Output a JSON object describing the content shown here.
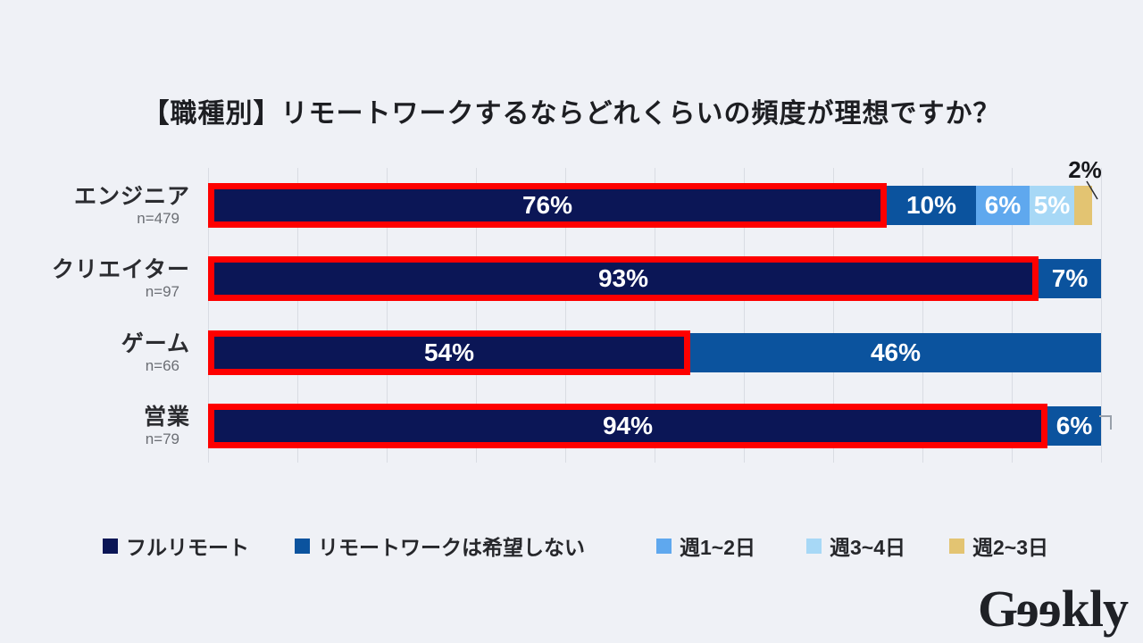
{
  "chart_data": {
    "type": "bar",
    "stacked": true,
    "orientation": "horizontal",
    "title": "【職種別】リモートワークするならどれくらいの頻度が理想ですか？",
    "categories": [
      {
        "label": "エンジニア",
        "n": "n=479"
      },
      {
        "label": "クリエイター",
        "n": "n=97"
      },
      {
        "label": "ゲーム",
        "n": "n=66"
      },
      {
        "label": "営業",
        "n": "n=79"
      }
    ],
    "series": [
      {
        "name": "フルリモート",
        "color": "#0B1656",
        "highlight_border": "#FE0000",
        "values": [
          76,
          93,
          54,
          94
        ]
      },
      {
        "name": "リモートワークは希望しない",
        "color": "#0B539E",
        "values": [
          10,
          7,
          46,
          6
        ]
      },
      {
        "name": "週1~2日",
        "color": "#5FA8EE",
        "values": [
          6,
          0,
          0,
          0
        ]
      },
      {
        "name": "週3~4日",
        "color": "#A7D8F6",
        "values": [
          5,
          0,
          0,
          0
        ]
      },
      {
        "name": "週2~3日",
        "color": "#E3C472",
        "values": [
          2,
          0,
          0,
          0
        ]
      }
    ],
    "value_unit": "%",
    "xlim": [
      0,
      100
    ],
    "grid_step": 10,
    "grid_on": true,
    "legend_position": "bottom",
    "data_labels": [
      "76%",
      "10%",
      "6%",
      "5%",
      "2%",
      "93%",
      "7%",
      "54%",
      "46%",
      "94%",
      "6%"
    ]
  },
  "colors": {
    "background": "#EFF1F6",
    "gridline": "#D9DCE3",
    "bar_label": "#FFFFFF",
    "title_text": "#1D1E22",
    "category_text": "#2B2C30",
    "n_text": "#6B6E74",
    "legend_text": "#26272B"
  },
  "logo": {
    "text": "Geekly",
    "parts": {
      "g": "G",
      "e": "e",
      "tail": "kly"
    }
  }
}
